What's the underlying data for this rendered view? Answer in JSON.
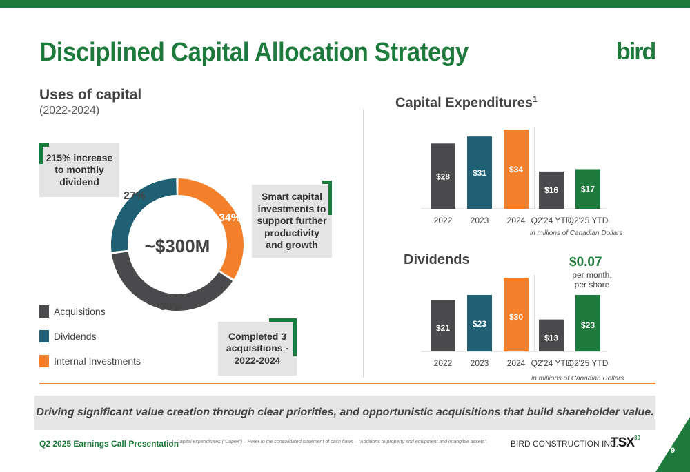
{
  "title": "Disciplined Capital Allocation Strategy",
  "logo_text": "bird",
  "uses": {
    "title": "Uses of capital",
    "subtitle": "(2022-2024)",
    "center_label": "~$300M",
    "legend": [
      "Acquisitions",
      "Dividends",
      "Internal Investments"
    ]
  },
  "callouts": {
    "dividend": "215% increase to monthly dividend",
    "capital": "Smart capital investments to support further productivity and growth",
    "acquisitions": "Completed 3 acquisitions - 2022-2024"
  },
  "capex": {
    "title": "Capital Expenditures",
    "footnote_mark": "1",
    "units": "in millions of Canadian Dollars"
  },
  "dividends": {
    "title": "Dividends",
    "per_month_value": "$0.07",
    "per_month_text": "per month, per share",
    "units": "in millions of Canadian Dollars"
  },
  "banner": "Driving significant value creation through clear priorities, and opportunistic acquisitions that build shareholder value.",
  "footer": {
    "presentation": "Q2 2025 Earnings Call Presentation",
    "footnote": "1.   Capital expenditures (“Capex”) – Refer to the consolidated statement of cash flows – “Additions to property and equipment and intangible assets”.",
    "company": "BIRD CONSTRUCTION INC.",
    "tsx": "TSX",
    "tsx_badge": "30",
    "page": "9"
  },
  "colors": {
    "green": "#1e7a3c",
    "acquisitions": "#4a4a4c",
    "dividends": "#1f6075",
    "internal": "#f4802b",
    "q225": "#1e7a3c"
  },
  "chart_data": [
    {
      "type": "pie",
      "title": "Uses of capital",
      "categories": [
        "Internal Investments",
        "Acquisitions",
        "Dividends"
      ],
      "values": [
        34,
        39,
        27
      ],
      "labels": [
        "34%",
        "39%",
        "27%"
      ],
      "colors": [
        "#f4802b",
        "#4a4a4c",
        "#1f6075"
      ]
    },
    {
      "type": "bar",
      "title": "Capital Expenditures",
      "categories": [
        "2022",
        "2023",
        "2024",
        "Q2'24 YTD",
        "Q2'25 YTD"
      ],
      "values": [
        28,
        31,
        34,
        16,
        17
      ],
      "labels": [
        "$28",
        "$31",
        "$34",
        "$16",
        "$17"
      ],
      "colors": [
        "#4a4a4c",
        "#1f6075",
        "#f4802b",
        "#4a4a4c",
        "#1e7a3c"
      ],
      "ylim": [
        0,
        34
      ]
    },
    {
      "type": "bar",
      "title": "Dividends",
      "categories": [
        "2022",
        "2023",
        "2024",
        "Q2'24 YTD",
        "Q2'25 YTD"
      ],
      "values": [
        21,
        23,
        30,
        13,
        23
      ],
      "labels": [
        "$21",
        "$23",
        "$30",
        "$13",
        "$23"
      ],
      "colors": [
        "#4a4a4c",
        "#1f6075",
        "#f4802b",
        "#4a4a4c",
        "#1e7a3c"
      ],
      "ylim": [
        0,
        30
      ]
    }
  ]
}
